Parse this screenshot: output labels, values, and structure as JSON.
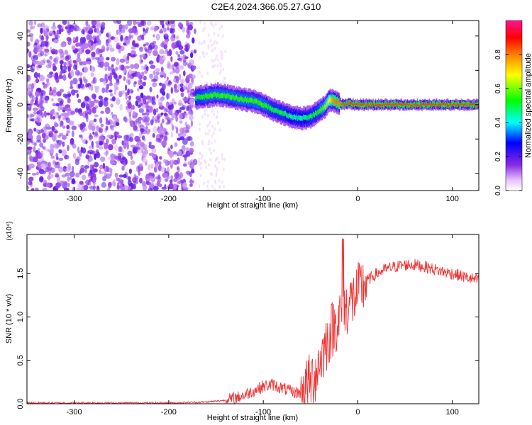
{
  "title": "C2E4.2024.366.05.27.G10",
  "chart_data": [
    {
      "type": "heatmap",
      "xlabel": "Height of straight line (km)",
      "ylabel": "Frequency (Hz)",
      "xlim": [
        -350,
        128
      ],
      "ylim": [
        -50,
        49
      ],
      "xticks": [
        -300,
        -200,
        -100,
        0,
        100
      ],
      "yticks": [
        -40,
        -20,
        0,
        20,
        40
      ],
      "colorbar": {
        "label": "Normalized spectral amplitude",
        "range": [
          0,
          1
        ],
        "ticks": [
          "0.0",
          "0.2",
          "0.4",
          "0.6",
          "0.8"
        ],
        "colors": [
          "#ffffff",
          "#e7c4ff",
          "#8a2be2",
          "#0000ff",
          "#00ffff",
          "#00ff00",
          "#ffff00",
          "#ff7f00",
          "#ff0000",
          "#ff1493"
        ]
      },
      "noise_region": {
        "x": [
          -350,
          -172
        ],
        "y": [
          -50,
          49
        ],
        "amplitude": 0.15
      },
      "sparse_region": {
        "x": [
          -168,
          -140
        ],
        "y": [
          -50,
          49
        ],
        "amplitude": 0.05
      },
      "ridge": {
        "x": [
          -172,
          -160,
          -150,
          -140,
          -130,
          -120,
          -110,
          -100,
          -90,
          -80,
          -70,
          -60,
          -50,
          -45,
          -40,
          -35,
          -30,
          -25,
          -20,
          -15,
          -10,
          -5,
          0,
          10,
          30,
          60,
          90,
          128
        ],
        "freq": [
          4,
          5,
          6,
          5,
          4,
          3,
          2,
          0,
          -3,
          -5,
          -7,
          -8,
          -7,
          -5,
          -3,
          -1,
          3,
          2,
          1,
          0,
          1,
          0,
          0,
          0,
          0,
          0,
          0,
          0
        ],
        "amplitude": [
          0.5,
          0.55,
          0.55,
          0.55,
          0.55,
          0.55,
          0.55,
          0.55,
          0.5,
          0.5,
          0.45,
          0.45,
          0.5,
          0.5,
          0.55,
          0.6,
          0.7,
          0.8,
          0.8,
          0.85,
          0.85,
          0.85,
          0.85,
          0.85,
          0.85,
          0.85,
          0.85,
          0.85
        ]
      }
    },
    {
      "type": "line",
      "xlabel": "Height of straight line (km)",
      "ylabel": "SNR (10 * v/v)",
      "yscale_label": "(x10⁴)",
      "xlim": [
        -350,
        128
      ],
      "ylim": [
        0,
        1.95
      ],
      "xticks": [
        -300,
        -200,
        -100,
        0,
        100
      ],
      "yticks": [
        "0.0",
        "0.5",
        "1.0",
        "1.5"
      ],
      "ytick_values": [
        0,
        0.5,
        1.0,
        1.5
      ],
      "color": "#ee3333",
      "series": [
        {
          "x": [
            -350,
            -300,
            -250,
            -200,
            -160,
            -140,
            -125,
            -110,
            -100,
            -90,
            -80,
            -70,
            -60,
            -50,
            -45,
            -40,
            -35,
            -30,
            -25,
            -20,
            -15,
            -10,
            -5,
            0,
            5,
            10,
            20,
            30,
            40,
            50,
            60,
            70,
            80,
            90,
            100,
            110,
            120,
            128
          ],
          "values": [
            0.01,
            0.01,
            0.01,
            0.01,
            0.02,
            0.04,
            0.08,
            0.15,
            0.2,
            0.22,
            0.18,
            0.14,
            0.12,
            0.25,
            0.35,
            0.5,
            0.65,
            0.8,
            0.9,
            1.0,
            1.05,
            1.15,
            1.2,
            1.28,
            1.35,
            1.42,
            1.5,
            1.55,
            1.58,
            1.6,
            1.6,
            1.58,
            1.55,
            1.52,
            1.5,
            1.47,
            1.44,
            1.42
          ]
        }
      ]
    }
  ]
}
